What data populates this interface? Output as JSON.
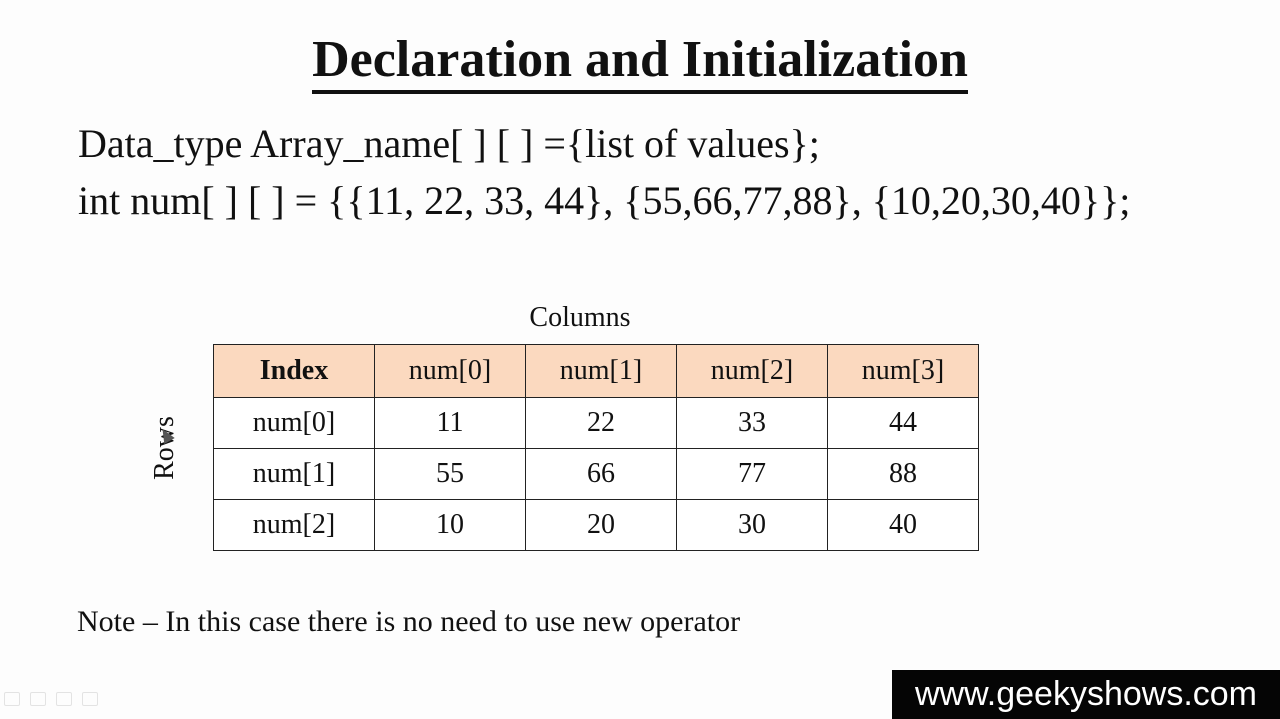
{
  "slide": {
    "title": "Declaration and Initialization",
    "syntax_line": "Data_type Array_name[ ] [ ] ={list of values};",
    "example_line": "int num[ ] [ ] = {{11, 22, 33, 44}, {55,66,77,88}, {10,20,30,40}};",
    "columns_label": "Columns",
    "rows_label": "Rows",
    "note": "Note – In this case there is no need to use new operator",
    "watermark": "www.geekyshows.com"
  },
  "table": {
    "headers": [
      "Index",
      "num[0]",
      "num[1]",
      "num[2]",
      "num[3]"
    ],
    "rows": [
      {
        "label": "num[0]",
        "values": [
          "11",
          "22",
          "33",
          "44"
        ]
      },
      {
        "label": "num[1]",
        "values": [
          "55",
          "66",
          "77",
          "88"
        ]
      },
      {
        "label": "num[2]",
        "values": [
          "10",
          "20",
          "30",
          "40"
        ]
      }
    ],
    "header_color": "#fbd9bf"
  },
  "icons": [
    "pointer-icon",
    "pen-icon",
    "menu-icon",
    "next-icon"
  ]
}
